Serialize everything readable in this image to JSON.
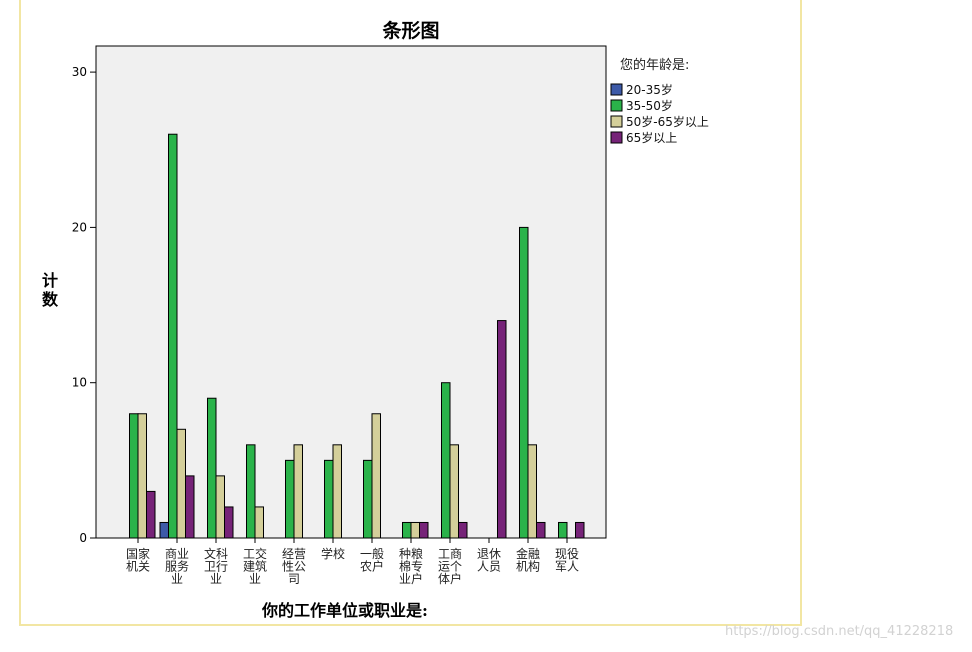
{
  "chart_data": {
    "type": "bar",
    "title": "条形图",
    "xlabel": "你的工作单位或职业是:",
    "ylabel": "计数",
    "ylim": [
      0,
      32
    ],
    "yticks": [
      "0",
      "10",
      "20",
      "30"
    ],
    "legend_title": "您的年龄是:",
    "legend_position": "right",
    "categories": [
      [
        "国家",
        "机关"
      ],
      [
        "商业",
        "服务",
        "业"
      ],
      [
        "文科",
        "卫行",
        "业"
      ],
      [
        "工交",
        "建筑",
        "业"
      ],
      [
        "经营",
        "性公",
        "司"
      ],
      [
        "学校"
      ],
      [
        "一般",
        "农户"
      ],
      [
        "种粮",
        "棉专",
        "业户"
      ],
      [
        "工商",
        "运个",
        "体户"
      ],
      [
        "退休",
        "人员"
      ],
      [
        "金融",
        "机构"
      ],
      [
        "现役",
        "军人"
      ]
    ],
    "series": [
      {
        "name": "20-35岁",
        "color": "#3d5aa8",
        "values": [
          0,
          1,
          0,
          0,
          0,
          0,
          0,
          0,
          0,
          0,
          0,
          0
        ]
      },
      {
        "name": "35-50岁",
        "color": "#2ab34a",
        "values": [
          8,
          26,
          9,
          6,
          5,
          5,
          5,
          1,
          10,
          0,
          20,
          1
        ]
      },
      {
        "name": "50岁-65岁以上",
        "color": "#d4cf9a",
        "values": [
          8,
          7,
          4,
          2,
          6,
          6,
          8,
          1,
          6,
          0,
          6,
          0
        ]
      },
      {
        "name": "65岁以上",
        "color": "#762378",
        "values": [
          3,
          4,
          2,
          0,
          0,
          0,
          0,
          1,
          1,
          14,
          1,
          1
        ]
      }
    ],
    "plot_background": "#f0f0f0",
    "grid": false
  },
  "watermark": "https://blog.csdn.net/qq_41228218"
}
